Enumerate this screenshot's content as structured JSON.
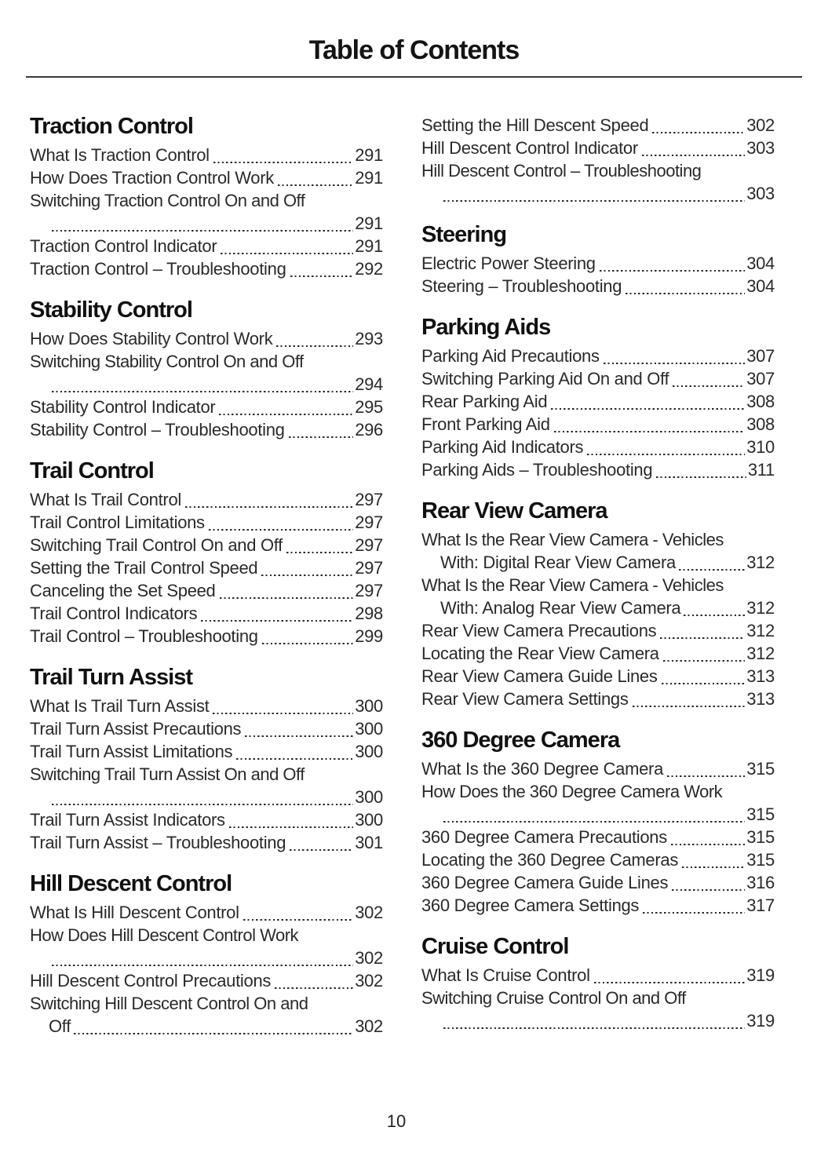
{
  "page": {
    "title": "Table of Contents",
    "footer_page_number": "10"
  },
  "columns": [
    {
      "name": "left",
      "sections": [
        {
          "heading": "Traction Control",
          "entries": [
            {
              "label": "What Is Traction Control",
              "page": "291"
            },
            {
              "label": "How Does Traction Control Work",
              "page": "291"
            },
            {
              "label": "Switching Traction Control On and Off",
              "label2": "",
              "page": "291",
              "wrap": true
            },
            {
              "label": "Traction Control Indicator",
              "page": "291"
            },
            {
              "label": "Traction Control – Troubleshooting",
              "page": "292"
            }
          ]
        },
        {
          "heading": "Stability Control",
          "entries": [
            {
              "label": "How Does Stability Control Work",
              "page": "293"
            },
            {
              "label": "Switching Stability Control On and Off",
              "label2": "",
              "page": "294",
              "wrap": true
            },
            {
              "label": "Stability Control Indicator",
              "page": "295"
            },
            {
              "label": "Stability Control – Troubleshooting",
              "page": "296"
            }
          ]
        },
        {
          "heading": "Trail Control",
          "entries": [
            {
              "label": "What Is Trail Control",
              "page": "297"
            },
            {
              "label": "Trail Control Limitations",
              "page": "297"
            },
            {
              "label": "Switching Trail Control On and Off",
              "page": "297"
            },
            {
              "label": "Setting the Trail Control Speed",
              "page": "297"
            },
            {
              "label": "Canceling the Set Speed",
              "page": "297"
            },
            {
              "label": "Trail Control Indicators",
              "page": "298"
            },
            {
              "label": "Trail Control – Troubleshooting",
              "page": "299"
            }
          ]
        },
        {
          "heading": "Trail Turn Assist",
          "entries": [
            {
              "label": "What Is Trail Turn Assist",
              "page": "300"
            },
            {
              "label": "Trail Turn Assist Precautions",
              "page": "300"
            },
            {
              "label": "Trail Turn Assist Limitations",
              "page": "300"
            },
            {
              "label": "Switching Trail Turn Assist On and Off",
              "label2": "",
              "page": "300",
              "wrap": true
            },
            {
              "label": "Trail Turn Assist Indicators",
              "page": "300"
            },
            {
              "label": "Trail Turn Assist – Troubleshooting",
              "page": "301"
            }
          ]
        },
        {
          "heading": "Hill Descent Control",
          "entries": [
            {
              "label": "What Is Hill Descent Control",
              "page": "302"
            },
            {
              "label": "How Does Hill Descent Control Work",
              "label2": "",
              "page": "302",
              "wrap": true
            },
            {
              "label": "Hill Descent Control Precautions",
              "page": "302"
            },
            {
              "label": "Switching Hill Descent Control On and",
              "label2": "Off",
              "page": "302",
              "wrap": true
            }
          ]
        }
      ]
    },
    {
      "name": "right",
      "sections": [
        {
          "heading": "",
          "entries": [
            {
              "label": "Setting the Hill Descent Speed",
              "page": "302"
            },
            {
              "label": "Hill Descent Control Indicator",
              "page": "303"
            },
            {
              "label": "Hill Descent Control – Troubleshooting",
              "label2": "",
              "page": "303",
              "wrap": true
            }
          ]
        },
        {
          "heading": "Steering",
          "entries": [
            {
              "label": "Electric Power Steering",
              "page": "304"
            },
            {
              "label": "Steering – Troubleshooting",
              "page": "304"
            }
          ]
        },
        {
          "heading": "Parking Aids",
          "entries": [
            {
              "label": "Parking Aid Precautions",
              "page": "307"
            },
            {
              "label": "Switching Parking Aid On and Off",
              "page": "307"
            },
            {
              "label": "Rear Parking Aid",
              "page": "308"
            },
            {
              "label": "Front Parking Aid",
              "page": "308"
            },
            {
              "label": "Parking Aid Indicators",
              "page": "310"
            },
            {
              "label": "Parking Aids – Troubleshooting",
              "page": "311"
            }
          ]
        },
        {
          "heading": "Rear View Camera",
          "entries": [
            {
              "label": "What Is the Rear View Camera - Vehicles",
              "label2": "With: Digital Rear View Camera",
              "page": "312",
              "wrap": true
            },
            {
              "label": "What Is the Rear View Camera - Vehicles",
              "label2": "With: Analog Rear View Camera",
              "page": "312",
              "wrap": true
            },
            {
              "label": "Rear View Camera Precautions",
              "page": "312"
            },
            {
              "label": "Locating the Rear View Camera",
              "page": "312"
            },
            {
              "label": "Rear View Camera Guide Lines",
              "page": "313"
            },
            {
              "label": "Rear View Camera Settings",
              "page": "313"
            }
          ]
        },
        {
          "heading": "360 Degree Camera",
          "entries": [
            {
              "label": "What Is the 360 Degree Camera",
              "page": "315"
            },
            {
              "label": "How Does the 360 Degree Camera Work",
              "label2": "",
              "page": "315",
              "wrap": true
            },
            {
              "label": "360 Degree Camera Precautions",
              "page": "315"
            },
            {
              "label": "Locating the 360 Degree Cameras",
              "page": "315"
            },
            {
              "label": "360 Degree Camera Guide Lines",
              "page": "316"
            },
            {
              "label": "360 Degree Camera Settings",
              "page": "317"
            }
          ]
        },
        {
          "heading": "Cruise Control",
          "entries": [
            {
              "label": "What Is Cruise Control",
              "page": "319"
            },
            {
              "label": "Switching Cruise Control On and Off",
              "label2": "",
              "page": "319",
              "wrap": true
            }
          ]
        }
      ]
    }
  ]
}
